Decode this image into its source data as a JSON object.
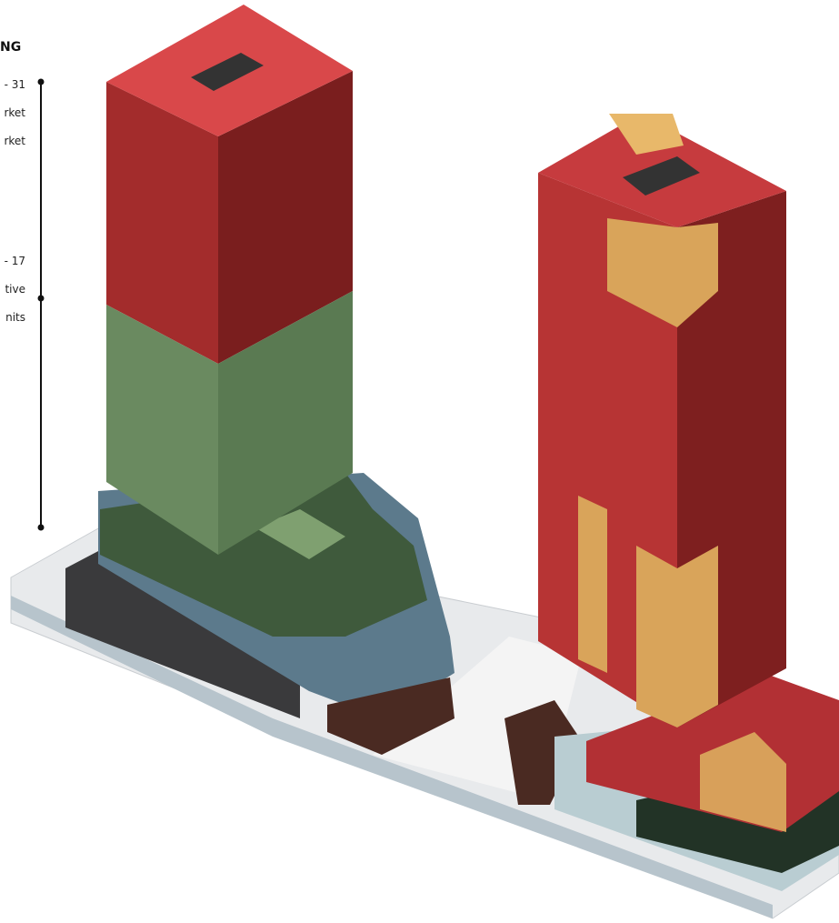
{
  "legend": {
    "title": "NG",
    "groups": [
      {
        "range": "- 31",
        "lines": [
          "rket",
          "rket"
        ]
      },
      {
        "range": "- 17",
        "lines": [
          "tive",
          "nits"
        ]
      }
    ]
  }
}
